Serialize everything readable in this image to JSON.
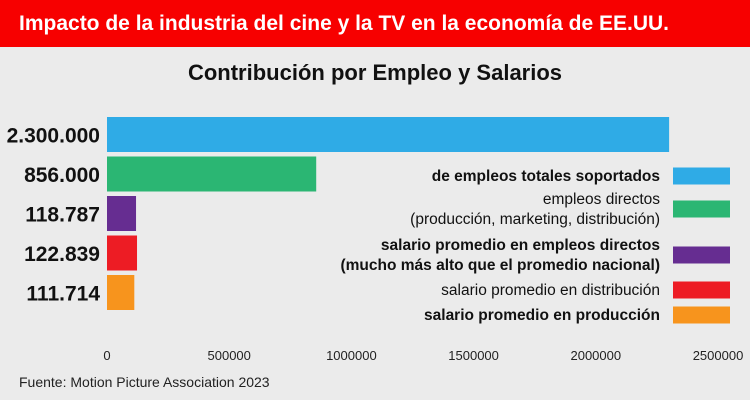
{
  "header": {
    "banner_text": "Impacto de la industria del cine y la TV en la economía de EE.UU.",
    "banner_color": "#f70000"
  },
  "footer": {
    "source": "Fuente: Motion Picture Association 2023"
  },
  "chart_data": {
    "type": "bar",
    "orientation": "horizontal",
    "title": "Contribución por Empleo y Salarios",
    "categories": [
      "2.300.000",
      "856.000",
      "118.787",
      "122.839",
      "111.714"
    ],
    "values": [
      2300000,
      856000,
      118787,
      122839,
      111714
    ],
    "colors": [
      "#2fabe6",
      "#2bb673",
      "#662d91",
      "#ed1c24",
      "#f7941d"
    ],
    "legend": [
      {
        "lines": [
          "de empleos totales soportados"
        ],
        "bold": true,
        "color": "#2fabe6"
      },
      {
        "lines": [
          "empleos directos",
          "(producción, marketing, distribución)"
        ],
        "bold": false,
        "color": "#2bb673"
      },
      {
        "lines": [
          "salario promedio en empleos directos",
          "(mucho más alto que el promedio nacional)"
        ],
        "bold": true,
        "color": "#662d91"
      },
      {
        "lines": [
          "salario promedio en distribución"
        ],
        "bold": false,
        "color": "#ed1c24"
      },
      {
        "lines": [
          "salario promedio en producción"
        ],
        "bold": true,
        "color": "#f7941d"
      }
    ],
    "x_ticks": [
      "0",
      "500000",
      "1000000",
      "1500000",
      "2000000",
      "2500000"
    ],
    "xlim": [
      0,
      2500000
    ],
    "legend_position": "right",
    "grid": false
  }
}
